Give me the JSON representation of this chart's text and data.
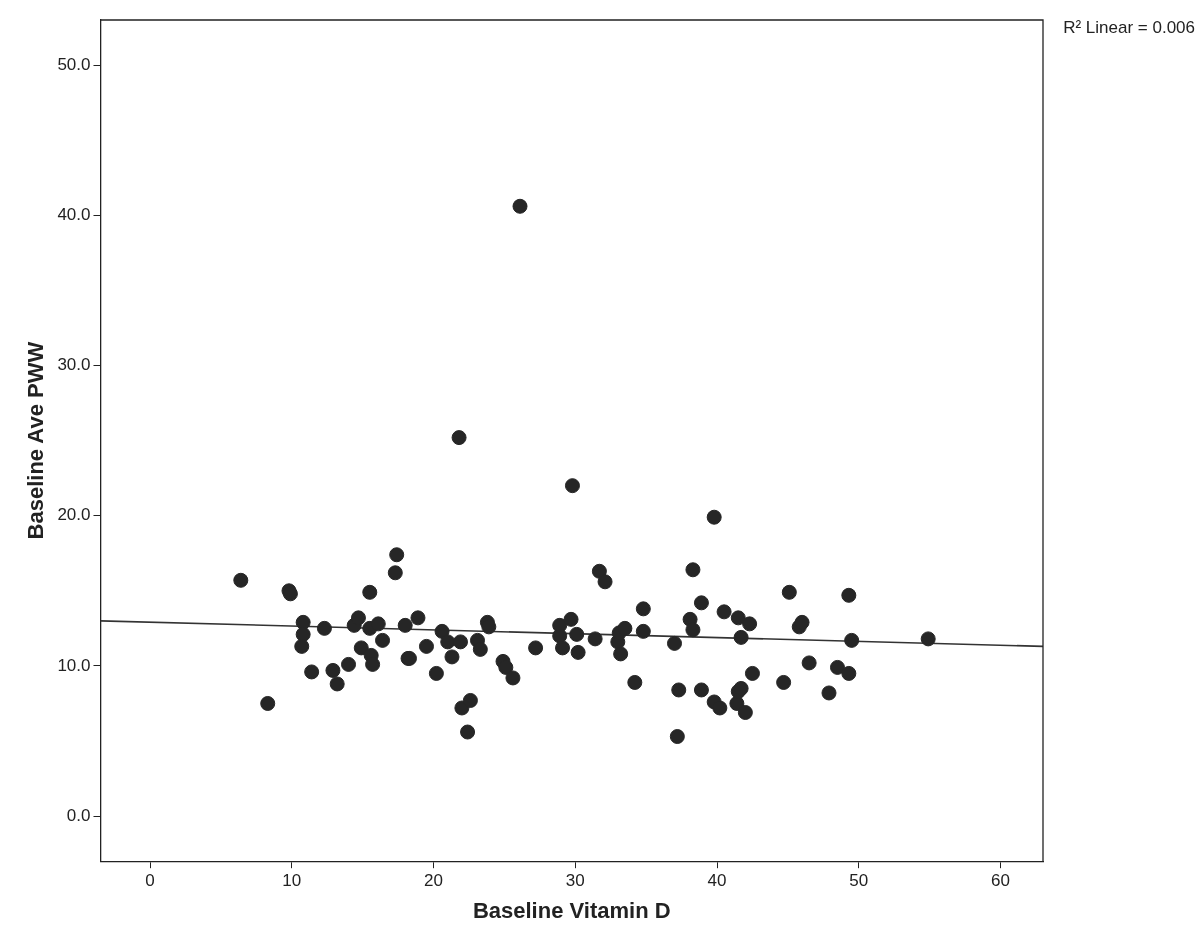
{
  "chart_data": {
    "type": "scatter",
    "xlabel": "Baseline Vitamin D",
    "ylabel": "Baseline Ave PWW",
    "annotations": [
      "R² Linear = 0.006"
    ],
    "xlim": [
      -3.5,
      63
    ],
    "ylim": [
      -3,
      53
    ],
    "xticks": [
      0,
      10,
      20,
      30,
      40,
      50,
      60
    ],
    "yticks": [
      {
        "value": 0,
        "label": "0.0"
      },
      {
        "value": 10,
        "label": "10.0"
      },
      {
        "value": 20,
        "label": "20.0"
      },
      {
        "value": 30,
        "label": "30.0"
      },
      {
        "value": 40,
        "label": "40.0"
      },
      {
        "value": 50,
        "label": "50.0"
      }
    ],
    "grid": false,
    "legend": false,
    "marker": "circle",
    "series": [
      {
        "type": "scatter",
        "color": "#262626",
        "x": [
          6.4,
          8.3,
          9.8,
          9.9,
          10.8,
          10.8,
          10.7,
          11.4,
          12.3,
          12.9,
          13.2,
          14.0,
          14.4,
          14.7,
          14.9,
          15.5,
          15.5,
          15.6,
          15.7,
          16.1,
          16.4,
          17.4,
          17.3,
          18.0,
          18.2,
          18.3,
          18.9,
          19.5,
          20.2,
          20.6,
          21.0,
          21.3,
          21.8,
          21.9,
          22.0,
          22.4,
          22.6,
          23.8,
          23.9,
          23.1,
          23.3,
          24.9,
          25.1,
          26.1,
          25.6,
          27.2,
          28.9,
          28.9,
          29.1,
          29.8,
          29.7,
          30.1,
          30.2,
          31.4,
          31.7,
          32.1,
          33.0,
          33.1,
          33.2,
          33.5,
          34.2,
          34.8,
          34.8,
          37.0,
          37.2,
          37.3,
          38.1,
          38.3,
          38.3,
          38.9,
          38.9,
          39.8,
          39.8,
          40.2,
          40.5,
          41.5,
          41.4,
          41.5,
          41.7,
          41.7,
          42.0,
          42.3,
          42.5,
          44.7,
          45.1,
          45.8,
          46.0,
          46.5,
          47.9,
          48.5,
          49.3,
          49.3,
          49.5,
          54.9
        ],
        "values": [
          15.7,
          7.5,
          15.0,
          14.8,
          12.9,
          12.1,
          11.3,
          9.6,
          12.5,
          9.7,
          8.8,
          10.1,
          12.7,
          13.2,
          11.2,
          14.9,
          12.5,
          10.7,
          10.1,
          12.8,
          11.7,
          17.4,
          16.2,
          12.7,
          10.5,
          10.5,
          13.2,
          11.3,
          9.5,
          12.3,
          11.6,
          10.6,
          25.2,
          11.6,
          7.2,
          5.6,
          7.7,
          12.9,
          12.6,
          11.7,
          11.1,
          10.3,
          9.9,
          40.6,
          9.2,
          11.2,
          12.7,
          12.0,
          11.2,
          22.0,
          13.1,
          12.1,
          10.9,
          11.8,
          16.3,
          15.6,
          11.6,
          12.2,
          10.8,
          12.5,
          8.9,
          12.3,
          13.8,
          11.5,
          5.3,
          8.4,
          13.1,
          16.4,
          12.4,
          14.2,
          8.4,
          19.9,
          7.6,
          7.2,
          13.6,
          13.2,
          7.5,
          8.3,
          11.9,
          8.5,
          6.9,
          12.8,
          9.5,
          8.9,
          14.9,
          12.6,
          12.9,
          10.2,
          8.2,
          9.9,
          14.7,
          9.5,
          11.7,
          11.8
        ]
      },
      {
        "type": "line",
        "color": "#333333",
        "marker": "none",
        "line_style": "solid",
        "x": [
          -3.5,
          63
        ],
        "values": [
          13.0,
          11.3
        ]
      }
    ]
  }
}
